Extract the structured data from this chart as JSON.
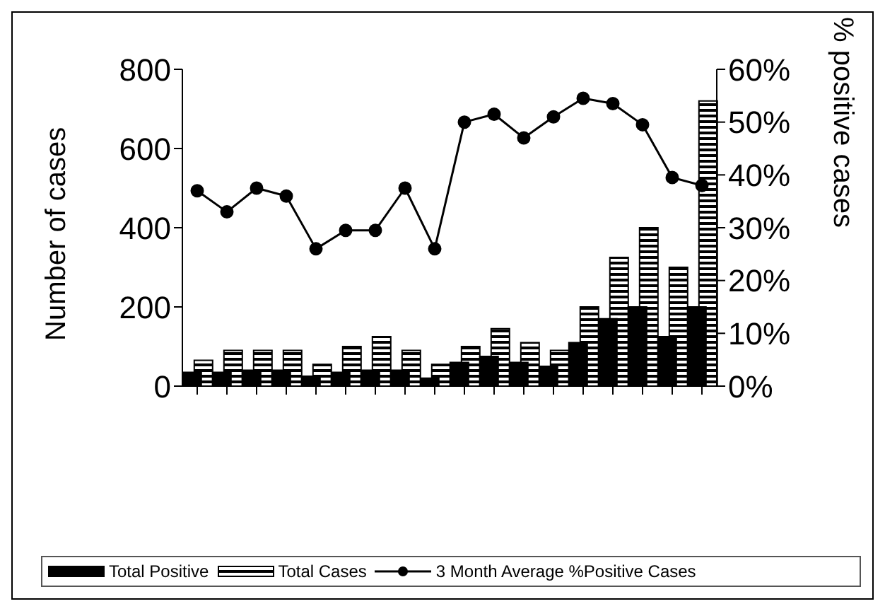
{
  "chart_data": {
    "type": "bar",
    "xlabel": null,
    "ylabel": "Number of cases",
    "y2label": "% positive cases",
    "categories": [
      null,
      null,
      null,
      null,
      null,
      null,
      null,
      null,
      null,
      null,
      null,
      null,
      null,
      null,
      null,
      null,
      null,
      null
    ],
    "series": [
      {
        "name": "Total Positive",
        "color": "#000000",
        "values": [
          35,
          35,
          40,
          40,
          25,
          35,
          40,
          40,
          20,
          60,
          75,
          60,
          50,
          110,
          170,
          200,
          125,
          200
        ]
      },
      {
        "name": "Total Cases",
        "color": "#000000",
        "values": [
          65,
          90,
          90,
          90,
          55,
          100,
          125,
          90,
          55,
          100,
          145,
          110,
          90,
          200,
          325,
          400,
          300,
          720
        ]
      },
      {
        "name": "3 Month Average %Positive Cases",
        "type": "line",
        "axis": "y2",
        "color": "#000000",
        "marker": "circle",
        "values": [
          37,
          33,
          37.5,
          36,
          26,
          29.5,
          29.5,
          37.5,
          26,
          50,
          51.5,
          47,
          51,
          54.5,
          53.5,
          49.5,
          39.5,
          38
        ]
      }
    ],
    "ylim": [
      0,
      800
    ],
    "yticks": [
      0,
      200,
      400,
      600,
      800
    ],
    "y2lim": [
      0,
      60
    ],
    "y2ticks": [
      {
        "value": 0,
        "label": "0%"
      },
      {
        "value": 10,
        "label": "10%"
      },
      {
        "value": 20,
        "label": "20%"
      },
      {
        "value": 30,
        "label": "30%"
      },
      {
        "value": 40,
        "label": "40%"
      },
      {
        "value": 50,
        "label": "50%"
      },
      {
        "value": 60,
        "label": "60%"
      }
    ],
    "grid": false,
    "legend": "bottom"
  }
}
